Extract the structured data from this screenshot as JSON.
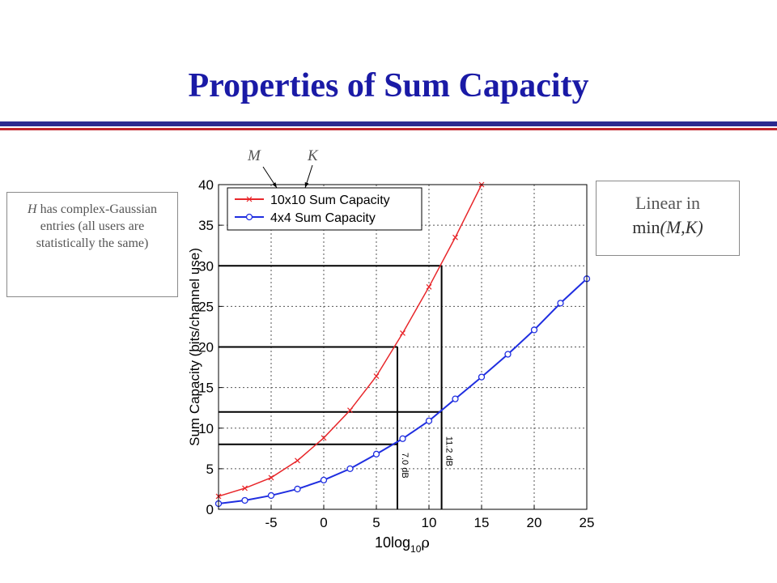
{
  "slide": {
    "title": "Properties of Sum Capacity",
    "note_left_italic": "H",
    "note_left_rest": " has complex-Gaussian entries (all users are statistically the same)",
    "note_right_line1": "Linear in",
    "note_right_prefix": "min",
    "note_right_args": "(M,K)",
    "letter_m": "M",
    "letter_k": "K"
  },
  "colors": {
    "title": "#1a1aa6",
    "rule_blue": "#2b2b8f",
    "rule_red": "#c0272d",
    "series_red": "#e8262a",
    "series_blue": "#1f2ee0"
  },
  "chart_data": {
    "type": "line",
    "xlabel_main": "10log",
    "xlabel_sub": "10",
    "xlabel_rho": "ρ",
    "ylabel": "Sum Capacity (bits/channel use)",
    "xlim": [
      -10,
      25
    ],
    "ylim": [
      0,
      40
    ],
    "x_ticks": [
      -5,
      0,
      5,
      10,
      15,
      20,
      25
    ],
    "y_ticks": [
      0,
      5,
      10,
      15,
      20,
      25,
      30,
      35,
      40
    ],
    "grid": true,
    "legend_position": "top-left",
    "series": [
      {
        "name": "10x10 Sum Capacity",
        "color": "#e8262a",
        "marker": "x",
        "x": [
          -10,
          -7.5,
          -5,
          -2.5,
          0,
          2.5,
          5,
          7.5,
          10,
          12.5,
          15
        ],
        "y": [
          1.6,
          2.6,
          3.9,
          6.0,
          8.8,
          12.2,
          16.4,
          21.7,
          27.4,
          33.5,
          40.0
        ]
      },
      {
        "name": "4x4 Sum Capacity",
        "color": "#1f2ee0",
        "marker": "o",
        "x": [
          -10,
          -7.5,
          -5,
          -2.5,
          0,
          2.5,
          5,
          7.5,
          10,
          12.5,
          15,
          17.5,
          20,
          22.5,
          25
        ],
        "y": [
          0.7,
          1.1,
          1.7,
          2.5,
          3.6,
          5.0,
          6.8,
          8.7,
          10.9,
          13.6,
          16.3,
          19.1,
          22.1,
          25.4,
          28.4
        ]
      }
    ],
    "reference_lines": [
      {
        "type": "h",
        "y": 30,
        "x_to": 11.2
      },
      {
        "type": "h",
        "y": 20,
        "x_to": 7.0
      },
      {
        "type": "h",
        "y": 12,
        "x_to": 11.2
      },
      {
        "type": "h",
        "y": 8,
        "x_to": 7.0
      },
      {
        "type": "v",
        "x": 7.0,
        "y_to": 20
      },
      {
        "type": "v",
        "x": 11.2,
        "y_to": 30
      }
    ],
    "annotations": [
      {
        "text": "7.0 dB",
        "x": 7.0,
        "y": 6
      },
      {
        "text": "11.2 dB",
        "x": 11.2,
        "y": 8
      }
    ]
  }
}
